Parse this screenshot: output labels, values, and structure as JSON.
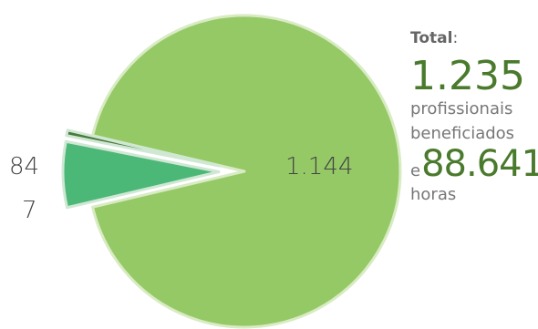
{
  "chart_data": {
    "type": "pie",
    "slices": [
      {
        "label": "1.144",
        "value": 1144,
        "color": "#95c966",
        "stroke": "#d8ebc3"
      },
      {
        "label": "84",
        "value": 84,
        "color": "#4cb877",
        "stroke": "#cfe8d4"
      },
      {
        "label": "7",
        "value": 7,
        "color": "#4a7a3c",
        "stroke": "#cfe8d4"
      }
    ],
    "exploded": [
      false,
      true,
      true
    ]
  },
  "total": {
    "title": "Total",
    "colon": ":",
    "count": "1.235",
    "line1": "profissionais",
    "line2": "beneficiados",
    "conj": "e",
    "hours": "88.641",
    "hours_label": "horas"
  }
}
